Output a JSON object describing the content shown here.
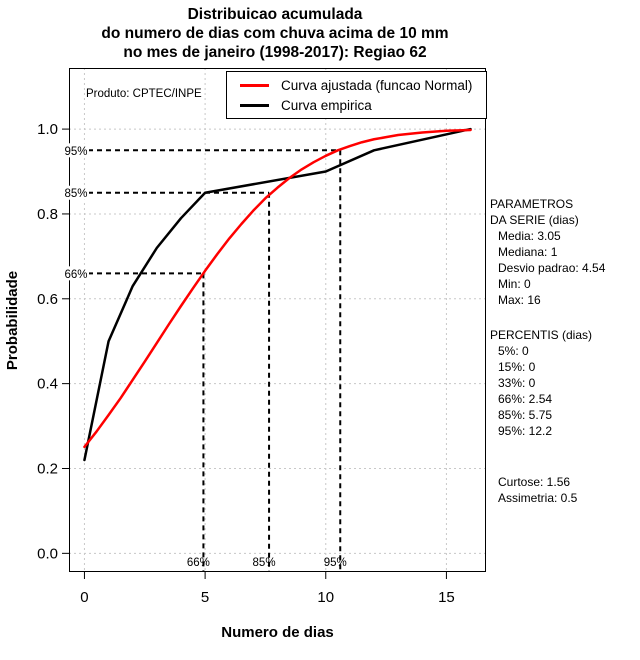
{
  "annotations": {
    "product": "Produto: CPTEC/INPE"
  },
  "side_panel": {
    "params_title_line1": "PARAMETROS",
    "params_title_line2": "DA SERIE (dias)",
    "params": [
      "Media: 3.05",
      "Mediana: 1",
      "Desvio padrao: 4.54",
      "Min: 0",
      "Max: 16"
    ],
    "percentis_title": "PERCENTIS (dias)",
    "percentis": [
      "5%: 0",
      "15%: 0",
      "33%: 0",
      "66%: 2.54",
      "85%: 5.75",
      "95%: 12.2"
    ],
    "stats": [
      "Curtose: 1.56",
      "Assimetria: 0.5"
    ]
  },
  "chart_data": {
    "type": "line",
    "title_lines": [
      "Distribuicao acumulada",
      "do numero de dias com chuva acima de 10 mm",
      "no mes de janeiro (1998-2017): Regiao 62"
    ],
    "title": "Distribuicao acumulada do numero de dias com chuva acima de 10 mm no mes de janeiro (1998-2017): Regiao 62",
    "xlabel": "Numero de dias",
    "ylabel": "Probabilidade",
    "xlim": [
      0,
      16
    ],
    "ylim": [
      0,
      1.1
    ],
    "expansion": 0.04,
    "x_ticks": [
      0,
      5,
      10,
      15
    ],
    "x_tick_labels": [
      "0",
      "5",
      "10",
      "15"
    ],
    "y_ticks": [
      0.0,
      0.2,
      0.4,
      0.6,
      0.8,
      1.0
    ],
    "y_tick_labels": [
      "0.0",
      "0.2",
      "0.4",
      "0.6",
      "0.8",
      "1.0"
    ],
    "grid": true,
    "grid_color": "#c8c8c8",
    "legend_position": "top-right",
    "series": [
      {
        "name": "Curva ajustada (funcao Normal)",
        "color": "#ff0000",
        "x": [
          0,
          0.5,
          1,
          1.5,
          2,
          2.5,
          3,
          3.5,
          4,
          4.5,
          5,
          5.5,
          6,
          6.5,
          7,
          7.5,
          8,
          8.5,
          9,
          9.5,
          10,
          10.5,
          11,
          11.5,
          12,
          12.5,
          13,
          13.5,
          14,
          14.5,
          15,
          15.5,
          16
        ],
        "y": [
          0.251,
          0.287,
          0.326,
          0.366,
          0.409,
          0.452,
          0.496,
          0.54,
          0.583,
          0.625,
          0.666,
          0.705,
          0.742,
          0.776,
          0.808,
          0.837,
          0.862,
          0.885,
          0.905,
          0.922,
          0.937,
          0.95,
          0.96,
          0.969,
          0.976,
          0.981,
          0.986,
          0.989,
          0.992,
          0.994,
          0.996,
          0.997,
          0.998
        ]
      },
      {
        "name": "Curva empirica",
        "color": "#000000",
        "x": [
          0,
          1,
          2,
          3,
          4,
          5,
          10,
          12,
          16
        ],
        "y": [
          0.22,
          0.5,
          0.63,
          0.72,
          0.79,
          0.85,
          0.9,
          0.95,
          1.0
        ]
      }
    ],
    "guides": [
      {
        "label": "66%",
        "p": 0.66,
        "x_cross": 4.93
      },
      {
        "label": "85%",
        "p": 0.85,
        "x_cross": 7.65
      },
      {
        "label": "95%",
        "p": 0.95,
        "x_cross": 10.6
      }
    ]
  }
}
